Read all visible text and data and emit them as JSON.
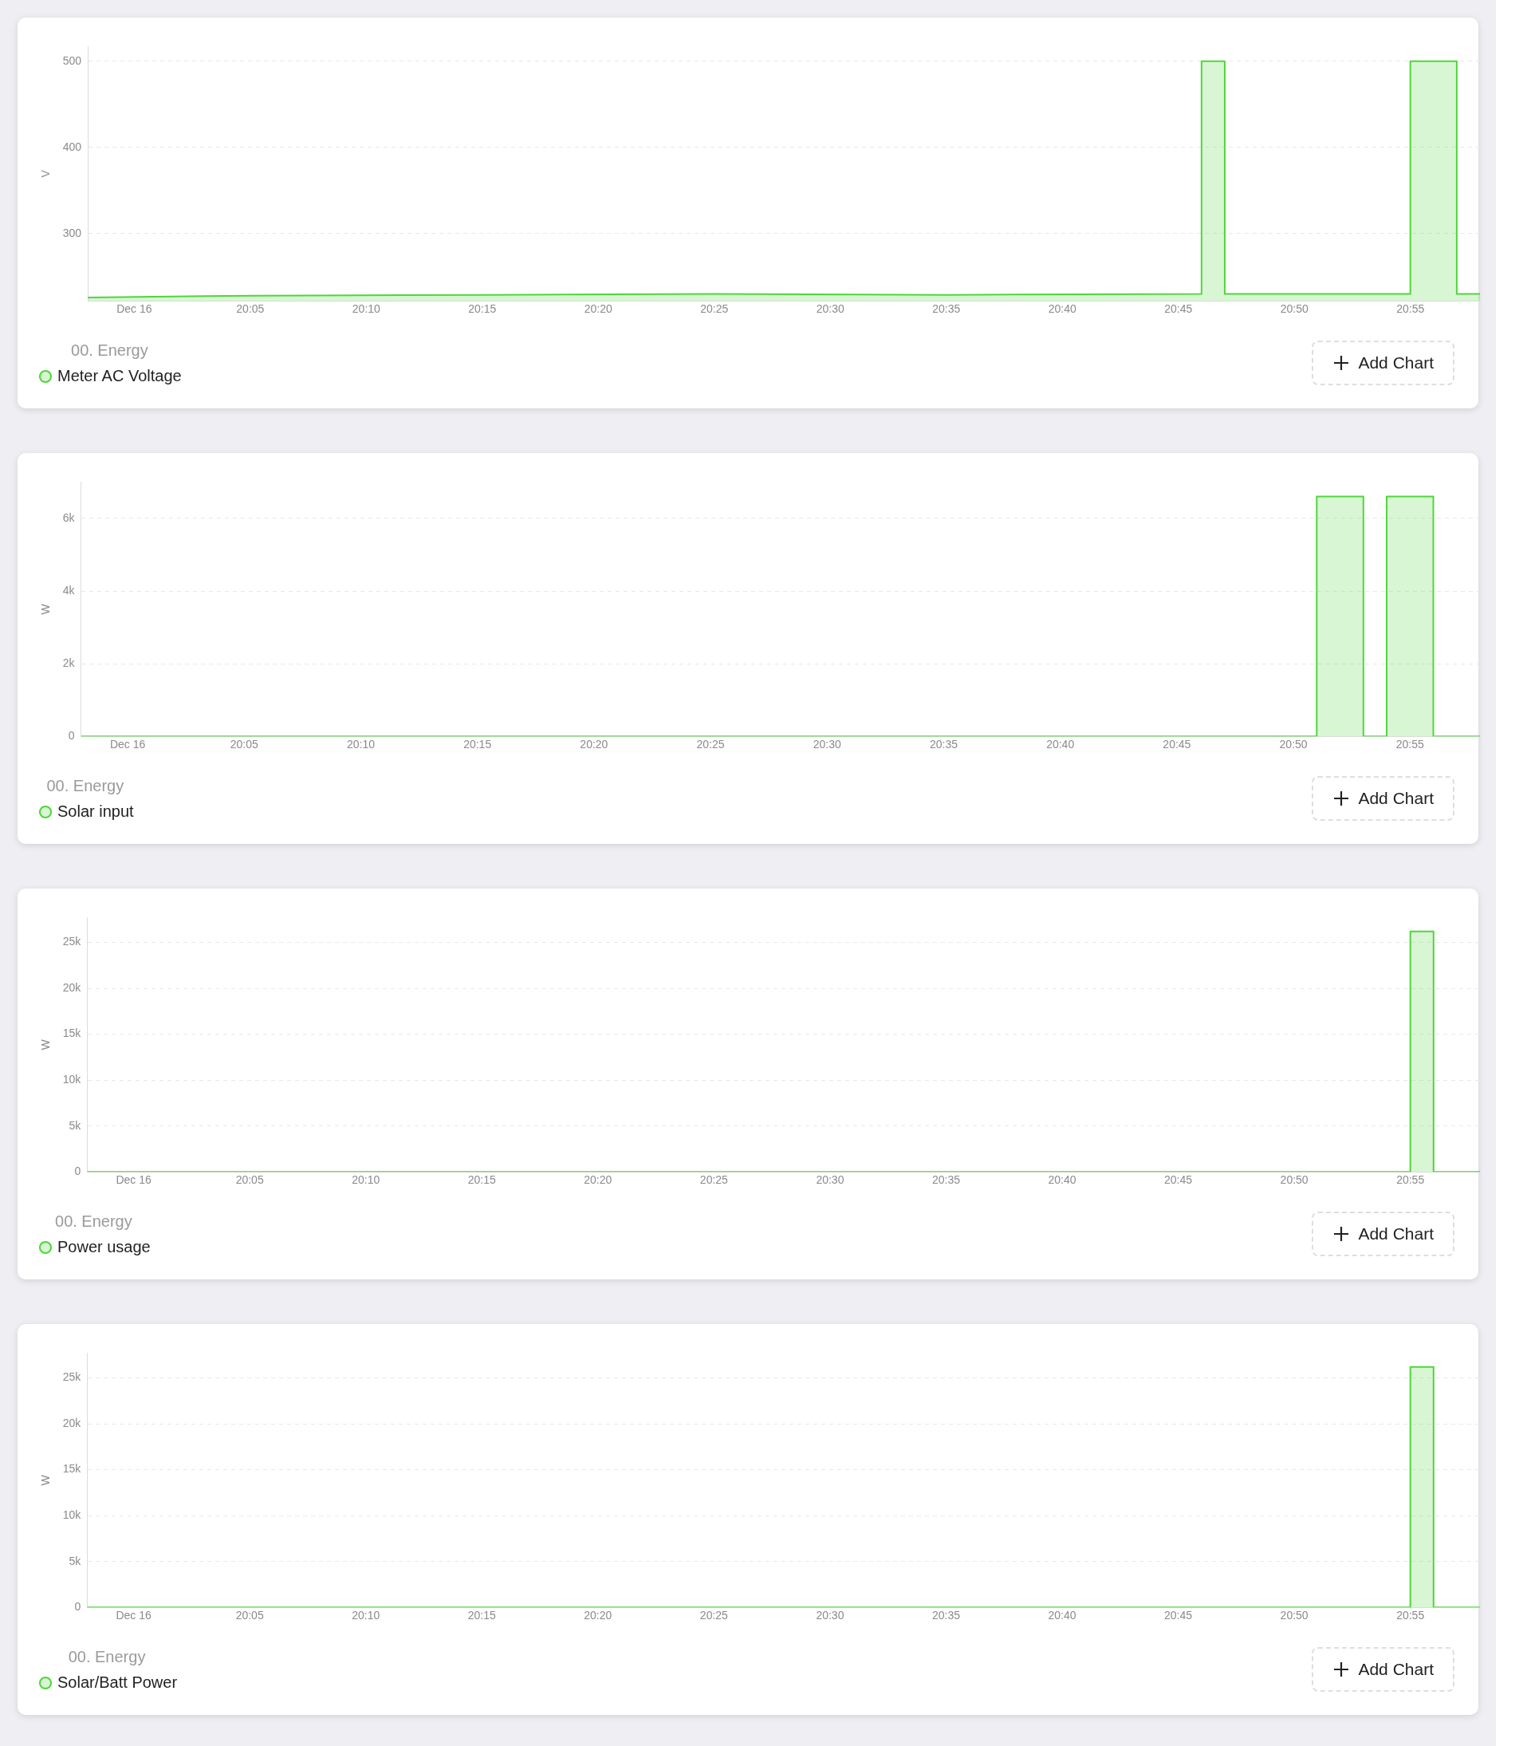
{
  "chart_data": [
    {
      "type": "area",
      "ylabel": "V",
      "legend_title": "00. Energy",
      "legend": "bottom left",
      "grid": "y",
      "annotations": [
        "Add Chart"
      ],
      "series": [
        {
          "name": "Meter AC Voltage",
          "color": "#4fd63a",
          "x": [
            "--12-16T19:58",
            "--12-16T20:05",
            "--12-16T20:15",
            "--12-16T20:25",
            "--12-16T20:35",
            "--12-16T20:46",
            "--12-16T20:46",
            "--12-16T20:47",
            "--12-16T20:47",
            "--12-16T20:55",
            "--12-16T20:55",
            "--12-16T20:57",
            "--12-16T20:57",
            "--12-16T20:58"
          ],
          "values": [
            226,
            228,
            229,
            230,
            229,
            230,
            500,
            500,
            230,
            230,
            500,
            500,
            230,
            230
          ]
        }
      ],
      "xlim": [
        "--12-16T19:58",
        "--12-16T20:58"
      ],
      "xticks": [
        {
          "value": "--12-16T20:00",
          "label": "Dec 16"
        },
        {
          "value": "--12-16T20:05",
          "label": "20:05"
        },
        {
          "value": "--12-16T20:10",
          "label": "20:10"
        },
        {
          "value": "--12-16T20:15",
          "label": "20:15"
        },
        {
          "value": "--12-16T20:20",
          "label": "20:20"
        },
        {
          "value": "--12-16T20:25",
          "label": "20:25"
        },
        {
          "value": "--12-16T20:30",
          "label": "20:30"
        },
        {
          "value": "--12-16T20:35",
          "label": "20:35"
        },
        {
          "value": "--12-16T20:40",
          "label": "20:40"
        },
        {
          "value": "--12-16T20:45",
          "label": "20:45"
        },
        {
          "value": "--12-16T20:50",
          "label": "20:50"
        },
        {
          "value": "--12-16T20:55",
          "label": "20:55"
        }
      ],
      "ylim": [
        222,
        517
      ],
      "yticks": [
        300,
        400,
        500
      ]
    },
    {
      "type": "area",
      "ylabel": "W",
      "legend_title": "00. Energy",
      "legend": "bottom left",
      "grid": "y",
      "annotations": [
        "Add Chart"
      ],
      "series": [
        {
          "name": "Solar input",
          "color": "#4fd63a",
          "x": [
            "--12-16T19:58",
            "--12-16T20:51",
            "--12-16T20:51",
            "--12-16T20:53",
            "--12-16T20:53",
            "--12-16T20:54",
            "--12-16T20:54",
            "--12-16T20:56",
            "--12-16T20:56",
            "--12-16T20:58"
          ],
          "values": [
            0,
            0,
            6600,
            6600,
            0,
            0,
            6600,
            6600,
            0,
            0
          ]
        }
      ],
      "xlim": [
        "--12-16T19:58",
        "--12-16T20:58"
      ],
      "xticks": [
        {
          "value": "--12-16T20:00",
          "label": "Dec 16"
        },
        {
          "value": "--12-16T20:05",
          "label": "20:05"
        },
        {
          "value": "--12-16T20:10",
          "label": "20:10"
        },
        {
          "value": "--12-16T20:15",
          "label": "20:15"
        },
        {
          "value": "--12-16T20:20",
          "label": "20:20"
        },
        {
          "value": "--12-16T20:25",
          "label": "20:25"
        },
        {
          "value": "--12-16T20:30",
          "label": "20:30"
        },
        {
          "value": "--12-16T20:35",
          "label": "20:35"
        },
        {
          "value": "--12-16T20:40",
          "label": "20:40"
        },
        {
          "value": "--12-16T20:45",
          "label": "20:45"
        },
        {
          "value": "--12-16T20:50",
          "label": "20:50"
        },
        {
          "value": "--12-16T20:55",
          "label": "20:55"
        }
      ],
      "ylim": [
        0,
        7000
      ],
      "yticks": [
        0,
        {
          "value": 2000,
          "label": "2k"
        },
        {
          "value": 4000,
          "label": "4k"
        },
        {
          "value": 6000,
          "label": "6k"
        }
      ]
    },
    {
      "type": "area",
      "ylabel": "W",
      "legend_title": "00. Energy",
      "legend": "bottom left",
      "grid": "y",
      "annotations": [
        "Add Chart"
      ],
      "series": [
        {
          "name": "Power usage",
          "color": "#4fd63a",
          "x": [
            "--12-16T19:58",
            "--12-16T20:55",
            "--12-16T20:55",
            "--12-16T20:56",
            "--12-16T20:56",
            "--12-16T20:58"
          ],
          "values": [
            0,
            0,
            26200,
            26200,
            0,
            0
          ]
        }
      ],
      "xlim": [
        "--12-16T19:58",
        "--12-16T20:58"
      ],
      "xticks": [
        {
          "value": "--12-16T20:00",
          "label": "Dec 16"
        },
        {
          "value": "--12-16T20:05",
          "label": "20:05"
        },
        {
          "value": "--12-16T20:10",
          "label": "20:10"
        },
        {
          "value": "--12-16T20:15",
          "label": "20:15"
        },
        {
          "value": "--12-16T20:20",
          "label": "20:20"
        },
        {
          "value": "--12-16T20:25",
          "label": "20:25"
        },
        {
          "value": "--12-16T20:30",
          "label": "20:30"
        },
        {
          "value": "--12-16T20:35",
          "label": "20:35"
        },
        {
          "value": "--12-16T20:40",
          "label": "20:40"
        },
        {
          "value": "--12-16T20:45",
          "label": "20:45"
        },
        {
          "value": "--12-16T20:50",
          "label": "20:50"
        },
        {
          "value": "--12-16T20:55",
          "label": "20:55"
        }
      ],
      "ylim": [
        0,
        27700
      ],
      "yticks": [
        0,
        {
          "value": 5000,
          "label": "5k"
        },
        {
          "value": 10000,
          "label": "10k"
        },
        {
          "value": 15000,
          "label": "15k"
        },
        {
          "value": 20000,
          "label": "20k"
        },
        {
          "value": 25000,
          "label": "25k"
        }
      ]
    },
    {
      "type": "area",
      "ylabel": "W",
      "legend_title": "00. Energy",
      "legend": "bottom left",
      "grid": "y",
      "annotations": [
        "Add Chart"
      ],
      "series": [
        {
          "name": "Solar/Batt Power",
          "color": "#4fd63a",
          "x": [
            "--12-16T19:58",
            "--12-16T20:55",
            "--12-16T20:55",
            "--12-16T20:56",
            "--12-16T20:56",
            "--12-16T20:58"
          ],
          "values": [
            0,
            0,
            26200,
            26200,
            0,
            0
          ]
        }
      ],
      "xlim": [
        "--12-16T19:58",
        "--12-16T20:58"
      ],
      "xticks": [
        {
          "value": "--12-16T20:00",
          "label": "Dec 16"
        },
        {
          "value": "--12-16T20:05",
          "label": "20:05"
        },
        {
          "value": "--12-16T20:10",
          "label": "20:10"
        },
        {
          "value": "--12-16T20:15",
          "label": "20:15"
        },
        {
          "value": "--12-16T20:20",
          "label": "20:20"
        },
        {
          "value": "--12-16T20:25",
          "label": "20:25"
        },
        {
          "value": "--12-16T20:30",
          "label": "20:30"
        },
        {
          "value": "--12-16T20:35",
          "label": "20:35"
        },
        {
          "value": "--12-16T20:40",
          "label": "20:40"
        },
        {
          "value": "--12-16T20:45",
          "label": "20:45"
        },
        {
          "value": "--12-16T20:50",
          "label": "20:50"
        },
        {
          "value": "--12-16T20:55",
          "label": "20:55"
        }
      ],
      "ylim": [
        0,
        27700
      ],
      "yticks": [
        0,
        {
          "value": 5000,
          "label": "5k"
        },
        {
          "value": 10000,
          "label": "10k"
        },
        {
          "value": 15000,
          "label": "15k"
        },
        {
          "value": 20000,
          "label": "20k"
        },
        {
          "value": 25000,
          "label": "25k"
        }
      ]
    }
  ]
}
